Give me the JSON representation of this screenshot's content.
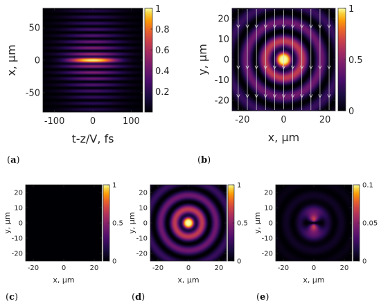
{
  "chart_data": [
    {
      "panel": "(a)",
      "type": "heatmap",
      "xlabel": "t-z/V, fs",
      "ylabel": "x, μm",
      "xlim": [
        -130,
        130
      ],
      "ylim": [
        -80,
        80
      ],
      "xticks": [
        -100,
        0,
        100
      ],
      "yticks": [
        -50,
        0,
        50
      ],
      "colorbar": {
        "min": 0,
        "max": 1,
        "ticks": [
          0.2,
          0.4,
          0.6,
          0.8,
          1
        ],
        "colormap": "inferno"
      }
    },
    {
      "panel": "(b)",
      "type": "heatmap",
      "xlabel": "x, μm",
      "ylabel": "y, μm",
      "xlim": [
        -25,
        25
      ],
      "ylim": [
        -25,
        25
      ],
      "xticks": [
        -20,
        0,
        20
      ],
      "yticks": [
        -20,
        -10,
        0,
        10,
        20
      ],
      "colorbar": {
        "min": 0,
        "max": 1,
        "ticks": [
          0,
          0.5,
          1
        ],
        "colormap": "inferno"
      },
      "overlay": "streamlines"
    },
    {
      "panel": "(c)",
      "type": "heatmap",
      "xlabel": "x, μm",
      "ylabel": "y, μm",
      "xlim": [
        -25,
        25
      ],
      "ylim": [
        -25,
        25
      ],
      "xticks": [
        -20,
        0,
        20
      ],
      "yticks": [
        -20,
        -10,
        0,
        10,
        20
      ],
      "colorbar": {
        "min": 0,
        "max": 1,
        "ticks": [
          0,
          0.5,
          1
        ],
        "colormap": "inferno"
      }
    },
    {
      "panel": "(d)",
      "type": "heatmap",
      "xlabel": "x, μm",
      "ylabel": "y, μm",
      "xlim": [
        -25,
        25
      ],
      "ylim": [
        -25,
        25
      ],
      "xticks": [
        -20,
        0,
        20
      ],
      "yticks": [
        -20,
        -10,
        0,
        10,
        20
      ],
      "colorbar": {
        "min": 0,
        "max": 1,
        "ticks": [
          0,
          0.5,
          1
        ],
        "colormap": "inferno"
      }
    },
    {
      "panel": "(e)",
      "type": "heatmap",
      "xlabel": "x, μm",
      "ylabel": "y, μm",
      "xlim": [
        -25,
        25
      ],
      "ylim": [
        -25,
        25
      ],
      "xticks": [
        -20,
        0,
        20
      ],
      "yticks": [
        -20,
        -10,
        0,
        10,
        20
      ],
      "colorbar": {
        "min": 0,
        "max": 0.1,
        "ticks": [
          0,
          0.05,
          0.1
        ],
        "colormap": "inferno"
      }
    }
  ]
}
